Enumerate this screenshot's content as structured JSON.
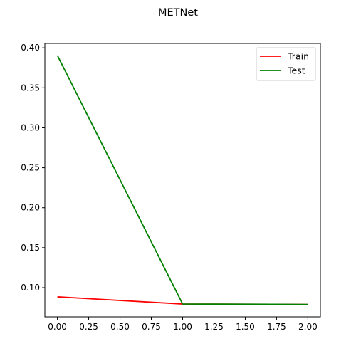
{
  "chart_data": {
    "type": "line",
    "title": "METNet",
    "xlabel": "",
    "ylabel": "",
    "x": [
      0,
      1,
      2
    ],
    "xlim": [
      -0.1,
      2.1
    ],
    "ylim": [
      0.0635,
      0.4055
    ],
    "xticks": [
      0.0,
      0.25,
      0.5,
      0.75,
      1.0,
      1.25,
      1.5,
      1.75,
      2.0
    ],
    "xtick_labels": [
      "0.00",
      "0.25",
      "0.50",
      "0.75",
      "1.00",
      "1.25",
      "1.50",
      "1.75",
      "2.00"
    ],
    "yticks": [
      0.1,
      0.15,
      0.2,
      0.25,
      0.3,
      0.35,
      0.4
    ],
    "ytick_labels": [
      "0.10",
      "0.15",
      "0.20",
      "0.25",
      "0.30",
      "0.35",
      "0.40"
    ],
    "grid": false,
    "legend_position": "top-right",
    "series": [
      {
        "name": "Train",
        "color": "#ff0000",
        "values": [
          0.0885,
          0.0795,
          0.079
        ]
      },
      {
        "name": "Test",
        "color": "#008000",
        "values": [
          0.3905,
          0.0795,
          0.079
        ]
      }
    ]
  }
}
